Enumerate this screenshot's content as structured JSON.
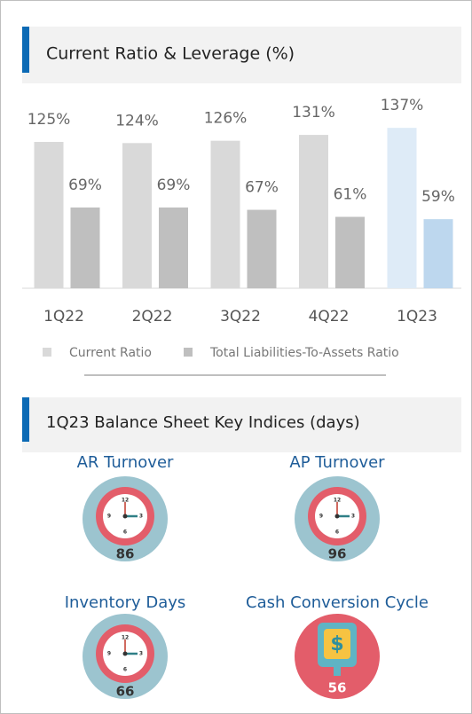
{
  "chart_data": {
    "type": "bar",
    "title": "Current Ratio & Leverage (%)",
    "categories": [
      "1Q22",
      "2Q22",
      "3Q22",
      "4Q22",
      "1Q23"
    ],
    "series": [
      {
        "name": "Current Ratio",
        "color": "#d9d9d9",
        "colors": [
          "#d9d9d9",
          "#d9d9d9",
          "#d9d9d9",
          "#d9d9d9",
          "#deebf7"
        ],
        "values": [
          125,
          124,
          126,
          131,
          137
        ],
        "value_labels": [
          "125%",
          "124%",
          "126%",
          "131%",
          "137%"
        ]
      },
      {
        "name": "Total Liabilities-To-Assets Ratio",
        "color": "#bfbfbf",
        "colors": [
          "#bfbfbf",
          "#bfbfbf",
          "#bfbfbf",
          "#bfbfbf",
          "#bdd7ee"
        ],
        "values": [
          69,
          69,
          67,
          61,
          59
        ],
        "value_labels": [
          "69%",
          "69%",
          "67%",
          "61%",
          "59%"
        ]
      }
    ],
    "legend": "bottom"
  },
  "indices": {
    "title": "1Q23 Balance Sheet Key Indices (days)",
    "clock_numbers": [
      "12",
      "3",
      "6",
      "9"
    ],
    "dollar_sign": "$",
    "items": [
      {
        "label": "AR Turnover",
        "value": 86,
        "icon": "clock"
      },
      {
        "label": "AP Turnover",
        "value": 96,
        "icon": "clock"
      },
      {
        "label": "Inventory Days",
        "value": 66,
        "icon": "clock"
      },
      {
        "label": "Cash Conversion Cycle",
        "value": 56,
        "icon": "dollar"
      }
    ]
  }
}
